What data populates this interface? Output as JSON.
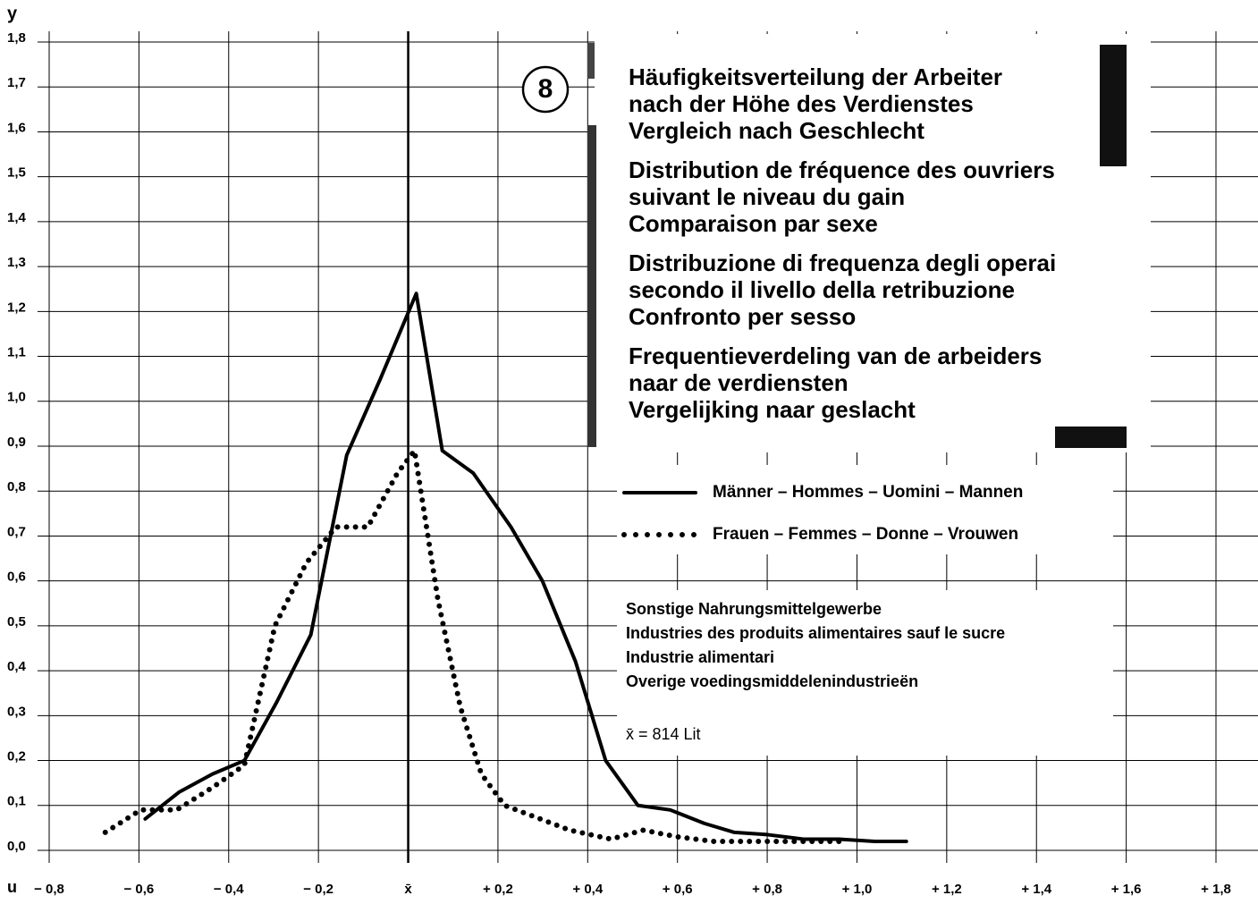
{
  "chart_data": {
    "type": "line",
    "title": [
      "Häufigkeitsverteilung der Arbeiter",
      "nach der Höhe des Verdienstes",
      "Vergleich nach Geschlecht",
      "Distribution de fréquence des ouvriers",
      "suivant le niveau du gain",
      "Comparaison par sexe",
      "Distribuzione di frequenza degli operai",
      "secondo il livello della retribuzione",
      "Confronto per sesso",
      "Frequentieverdeling van de arbeiders",
      "naar de verdiensten",
      "Vergelijking naar geslacht"
    ],
    "chart_number": "8",
    "subtitle": [
      "Sonstige Nahrungsmittelgewerbe",
      "Industries des produits alimentaires sauf le sucre",
      "Industrie alimentari",
      "Overige voedingsmiddelenindustrieën"
    ],
    "annotation": "x̄ = 814 Lit",
    "x_label": "u",
    "y_label": "y",
    "xlim": [
      -0.8,
      1.8
    ],
    "ylim": [
      0,
      1.8
    ],
    "xticks": [
      {
        "value": -0.8,
        "label": "− 0,8"
      },
      {
        "value": -0.6,
        "label": "− 0,6"
      },
      {
        "value": -0.4,
        "label": "− 0,4"
      },
      {
        "value": -0.2,
        "label": "− 0,2"
      },
      {
        "value": 0,
        "label": "x̄"
      },
      {
        "value": 0.2,
        "label": "+ 0,2"
      },
      {
        "value": 0.4,
        "label": "+ 0,4"
      },
      {
        "value": 0.6,
        "label": "+ 0,6"
      },
      {
        "value": 0.8,
        "label": "+ 0,8"
      },
      {
        "value": 1.0,
        "label": "+ 1,0"
      },
      {
        "value": 1.2,
        "label": "+ 1,2"
      },
      {
        "value": 1.4,
        "label": "+ 1,4"
      },
      {
        "value": 1.6,
        "label": "+ 1,6"
      },
      {
        "value": 1.8,
        "label": "+ 1,8"
      }
    ],
    "yticks": [
      {
        "value": 0,
        "label": "0,0"
      },
      {
        "value": 0.1,
        "label": "0,1"
      },
      {
        "value": 0.2,
        "label": "0,2"
      },
      {
        "value": 0.3,
        "label": "0,3"
      },
      {
        "value": 0.4,
        "label": "0,4"
      },
      {
        "value": 0.5,
        "label": "0,5"
      },
      {
        "value": 0.6,
        "label": "0,6"
      },
      {
        "value": 0.7,
        "label": "0,7"
      },
      {
        "value": 0.8,
        "label": "0,8"
      },
      {
        "value": 0.9,
        "label": "0,9"
      },
      {
        "value": 1.0,
        "label": "1,0"
      },
      {
        "value": 1.1,
        "label": "1,1"
      },
      {
        "value": 1.2,
        "label": "1,2"
      },
      {
        "value": 1.3,
        "label": "1,3"
      },
      {
        "value": 1.4,
        "label": "1,4"
      },
      {
        "value": 1.5,
        "label": "1,5"
      },
      {
        "value": 1.6,
        "label": "1,6"
      },
      {
        "value": 1.7,
        "label": "1,7"
      },
      {
        "value": 1.8,
        "label": "1,8"
      }
    ],
    "grid": true,
    "series": [
      {
        "name": "Männer – Hommes – Uomini – Mannen",
        "color": "#000000",
        "style": "solid",
        "x": [
          -0.586,
          -0.51,
          -0.436,
          -0.365,
          -0.293,
          -0.217,
          -0.137,
          -0.062,
          0.018,
          0.076,
          0.145,
          0.229,
          0.299,
          0.373,
          0.44,
          0.512,
          0.584,
          0.66,
          0.727,
          0.8,
          0.88,
          0.96,
          1.04,
          1.11
        ],
        "values": [
          0.07,
          0.13,
          0.17,
          0.2,
          0.33,
          0.48,
          0.88,
          1.05,
          1.24,
          0.89,
          0.84,
          0.72,
          0.6,
          0.42,
          0.2,
          0.1,
          0.09,
          0.06,
          0.04,
          0.035,
          0.025,
          0.025,
          0.02,
          0.02
        ]
      },
      {
        "name": "Frauen – Femmes – Donne – Vrouwen",
        "color": "#000000",
        "style": "dotted",
        "x": [
          -0.675,
          -0.596,
          -0.516,
          -0.436,
          -0.365,
          -0.297,
          -0.227,
          -0.161,
          -0.09,
          -0.024,
          0.014,
          0.066,
          0.116,
          0.163,
          0.215,
          0.281,
          0.36,
          0.452,
          0.524,
          0.6,
          0.68,
          0.8,
          0.96
        ],
        "values": [
          0.04,
          0.09,
          0.09,
          0.14,
          0.19,
          0.5,
          0.64,
          0.72,
          0.72,
          0.84,
          0.89,
          0.56,
          0.32,
          0.17,
          0.1,
          0.075,
          0.045,
          0.025,
          0.045,
          0.03,
          0.02,
          0.02,
          0.02
        ]
      }
    ]
  }
}
